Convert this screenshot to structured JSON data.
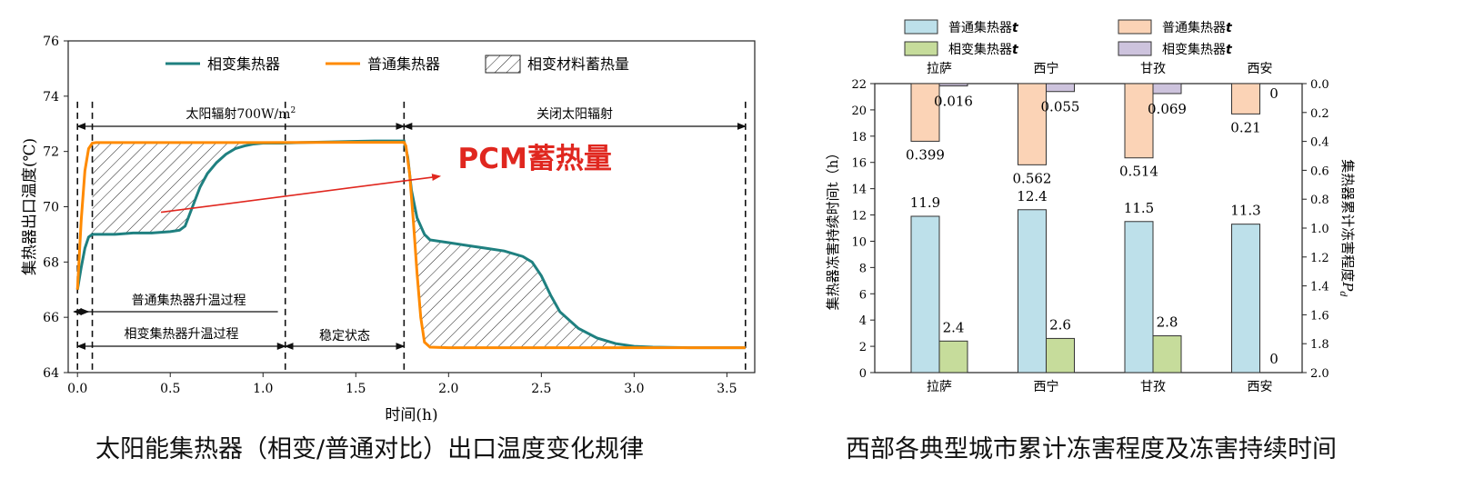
{
  "captions": {
    "left": "太阳能集热器（相变/普通对比）出口温度变化规律",
    "right": "西部各典型城市累计冻害程度及冻害持续时间"
  },
  "colors": {
    "pcm": "#1f8080",
    "normal": "#ff8a00",
    "hatch": "#222222",
    "bar_normal_t": "#bde0ea",
    "bar_pcm_t": "#c6dc9b",
    "bar_normal_p": "#fbd3b6",
    "bar_pcm_p": "#cdc3dd",
    "arrow": "#e0271f"
  },
  "chart_data": [
    {
      "type": "line",
      "title": "",
      "xlabel": "时间(h)",
      "ylabel": "集热器出口温度(℃)",
      "xlim": [
        -0.05,
        3.65
      ],
      "ylim": [
        64,
        76
      ],
      "xticks": [
        "0.0",
        "0.5",
        "1.0",
        "1.5",
        "2.0",
        "2.5",
        "3.0",
        "3.5"
      ],
      "yticks": [
        "64",
        "66",
        "68",
        "70",
        "72",
        "74",
        "76"
      ],
      "legend": [
        "相变集热器",
        "普通集热器",
        "相变材料蓄热量"
      ],
      "legend_position": "top",
      "series": [
        {
          "name": "相变集热器",
          "x": [
            0,
            0.02,
            0.04,
            0.06,
            0.08,
            0.1,
            0.2,
            0.3,
            0.4,
            0.5,
            0.55,
            0.58,
            0.62,
            0.66,
            0.7,
            0.75,
            0.8,
            0.85,
            0.9,
            0.95,
            1.0,
            1.05,
            1.1,
            1.2,
            1.4,
            1.6,
            1.76,
            1.78,
            1.8,
            1.83,
            1.87,
            1.9,
            2.0,
            2.1,
            2.2,
            2.3,
            2.4,
            2.45,
            2.5,
            2.55,
            2.6,
            2.7,
            2.8,
            2.9,
            3.0,
            3.1,
            3.3,
            3.6
          ],
          "y": [
            67.0,
            67.8,
            68.5,
            68.9,
            69.0,
            69.0,
            69.0,
            69.05,
            69.05,
            69.1,
            69.15,
            69.3,
            70.0,
            70.7,
            71.2,
            71.6,
            71.9,
            72.1,
            72.2,
            72.27,
            72.3,
            72.3,
            72.3,
            72.32,
            72.35,
            72.38,
            72.38,
            71.8,
            70.6,
            69.6,
            69.0,
            68.8,
            68.7,
            68.6,
            68.5,
            68.4,
            68.2,
            68.0,
            67.5,
            66.8,
            66.2,
            65.6,
            65.25,
            65.05,
            64.95,
            64.92,
            64.9,
            64.9
          ]
        },
        {
          "name": "普通集热器",
          "x": [
            0,
            0.02,
            0.04,
            0.06,
            0.08,
            0.1,
            0.5,
            1.0,
            1.5,
            1.76,
            1.77,
            1.79,
            1.81,
            1.83,
            1.85,
            1.87,
            1.9,
            2.0,
            3.0,
            3.6
          ],
          "y": [
            67.0,
            69.5,
            71.3,
            72.1,
            72.3,
            72.32,
            72.32,
            72.32,
            72.33,
            72.33,
            72.2,
            71.2,
            69.5,
            67.6,
            66.0,
            65.1,
            64.92,
            64.9,
            64.9,
            64.9
          ]
        }
      ],
      "annotations": [
        {
          "text": "太阳辐射700W/m",
          "sup": "2"
        },
        {
          "text": "关闭太阳辐射"
        },
        {
          "text": "PCM蓄热量"
        },
        {
          "text": "普通集热器升温过程"
        },
        {
          "text": "相变集热器升温过程"
        },
        {
          "text": "稳定状态"
        }
      ]
    },
    {
      "type": "bar",
      "title": "",
      "categories": [
        "拉萨",
        "西宁",
        "甘孜",
        "西安"
      ],
      "ylabel_left": "集热器冻害持续时间t（h）",
      "ylabel_right": "集热器累计冻害程度",
      "ylabel_right_sym": "P",
      "ylabel_right_sub": "d",
      "ylim_left": [
        0,
        22
      ],
      "yticks_left": [
        "0",
        "2",
        "4",
        "6",
        "8",
        "10",
        "12",
        "14",
        "16",
        "18",
        "20",
        "22"
      ],
      "ylim_right": [
        0,
        2.0
      ],
      "yticks_right": [
        "0.0",
        "0.2",
        "0.4",
        "0.6",
        "0.8",
        "1.0",
        "1.2",
        "1.4",
        "1.6",
        "1.8",
        "2.0"
      ],
      "legend_position": "top",
      "legend": [
        {
          "label": "普通集热器",
          "sym": "t"
        },
        {
          "label": "普通集热器",
          "sym": "t"
        },
        {
          "label": "相变集热器",
          "sym": "t"
        },
        {
          "label": "相变集热器",
          "sym": "t"
        }
      ],
      "series": [
        {
          "name": "普通集热器t",
          "axis": "left",
          "values": [
            11.9,
            12.4,
            11.5,
            11.3
          ],
          "labels": [
            "11.9",
            "12.4",
            "11.5",
            "11.3"
          ]
        },
        {
          "name": "相变集热器t",
          "axis": "left",
          "values": [
            2.4,
            2.6,
            2.8,
            0
          ],
          "labels": [
            "2.4",
            "2.6",
            "2.8",
            "0"
          ]
        },
        {
          "name": "普通集热器t",
          "axis": "right_inverted",
          "values": [
            0.399,
            0.562,
            0.514,
            0.21
          ],
          "labels": [
            "0.399",
            "0.562",
            "0.514",
            "0.21"
          ]
        },
        {
          "name": "相变集热器t",
          "axis": "right_inverted",
          "values": [
            0.016,
            0.055,
            0.069,
            0
          ],
          "labels": [
            "0.016",
            "0.055",
            "0.069",
            "0"
          ]
        }
      ]
    }
  ]
}
